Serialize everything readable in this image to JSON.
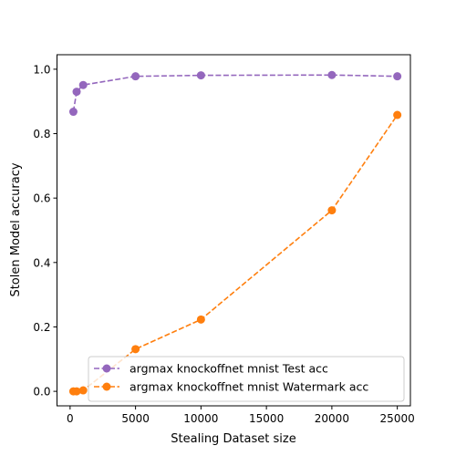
{
  "chart_data": {
    "type": "line",
    "title": "",
    "xlabel": "Stealing Dataset size",
    "ylabel": "Stolen Model accuracy",
    "xlim": [
      -1000,
      26000
    ],
    "ylim": [
      -0.045,
      1.045
    ],
    "xticks": [
      0,
      5000,
      10000,
      15000,
      20000,
      25000
    ],
    "yticks": [
      0.0,
      0.2,
      0.4,
      0.6,
      0.8,
      1.0
    ],
    "xtick_labels": [
      "0",
      "5000",
      "10000",
      "15000",
      "20000",
      "25000"
    ],
    "ytick_labels": [
      "0.0",
      "0.2",
      "0.4",
      "0.6",
      "0.8",
      "1.0"
    ],
    "grid": false,
    "legend_position": "lower-right",
    "series": [
      {
        "name": "argmax knockoffnet mnist Test acc",
        "color": "#9467bd",
        "line_style": "dashed",
        "marker": "circle",
        "x": [
          250,
          500,
          1000,
          5000,
          10000,
          20000,
          25000
        ],
        "y": [
          0.868,
          0.93,
          0.951,
          0.978,
          0.981,
          0.982,
          0.978
        ]
      },
      {
        "name": "argmax knockoffnet mnist Watermark acc",
        "color": "#ff7f0e",
        "line_style": "dashed",
        "marker": "circle",
        "x": [
          250,
          500,
          1000,
          5000,
          10000,
          20000,
          25000
        ],
        "y": [
          0.0,
          0.0,
          0.003,
          0.131,
          0.223,
          0.562,
          0.858
        ]
      }
    ]
  }
}
